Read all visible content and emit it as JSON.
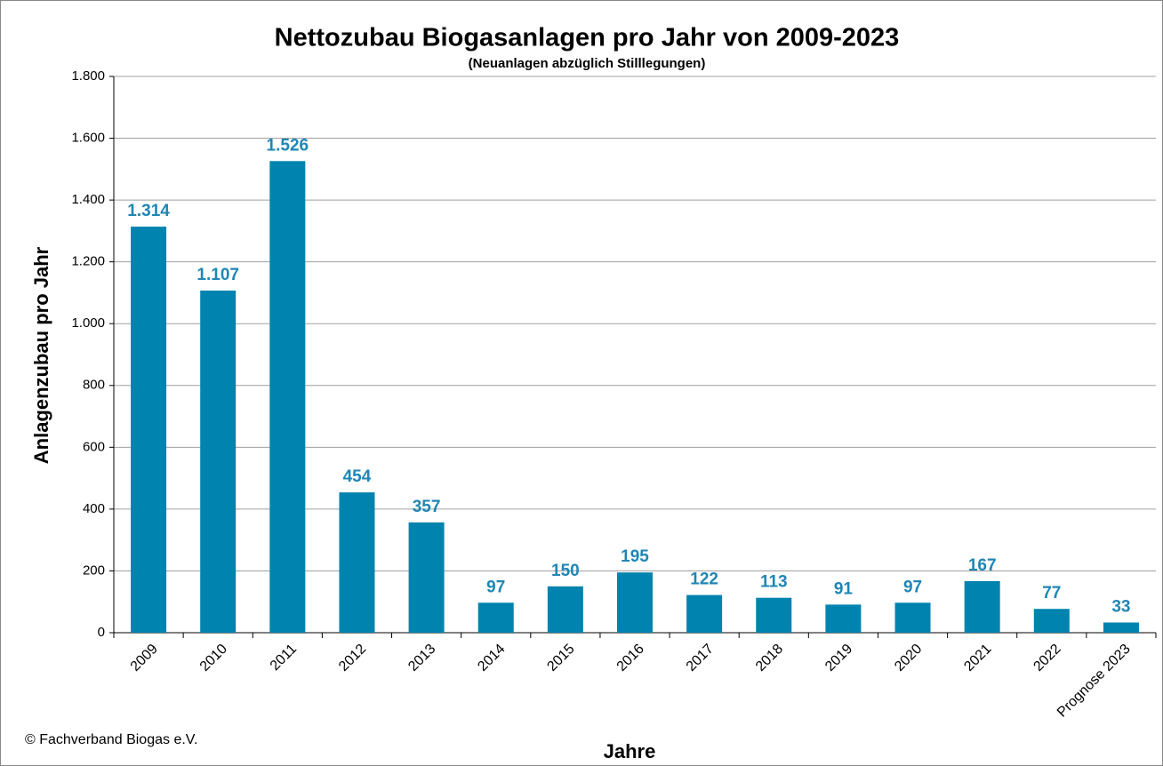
{
  "chart_data": {
    "type": "bar",
    "title": "Nettozubau Biogasanlagen pro Jahr von 2009-2023",
    "subtitle": "(Neuanlagen abzüglich Stilllegungen)",
    "x_label": "Jahre",
    "y_label": "Anlagenzubau pro Jahr",
    "source": "© Fachverband Biogas e.V.",
    "categories": [
      "2009",
      "2010",
      "2011",
      "2012",
      "2013",
      "2014",
      "2015",
      "2016",
      "2017",
      "2018",
      "2019",
      "2020",
      "2021",
      "2022",
      "Prognose 2023"
    ],
    "values": [
      1314,
      1107,
      1526,
      454,
      357,
      97,
      150,
      195,
      122,
      113,
      91,
      97,
      167,
      77,
      33
    ],
    "value_labels": [
      "1.314",
      "1.107",
      "1.526",
      "454",
      "357",
      "97",
      "150",
      "195",
      "122",
      "113",
      "91",
      "97",
      "167",
      "77",
      "33"
    ],
    "color": "#0083ae",
    "ylim": [
      0,
      1800
    ],
    "yticks": [
      0,
      200,
      400,
      600,
      800,
      {
        "value": 1000,
        "label": "1.000"
      },
      {
        "value": 1200,
        "label": "1.200"
      },
      {
        "value": 1400,
        "label": "1.400"
      },
      {
        "value": 1600,
        "label": "1.600"
      },
      {
        "value": 1800,
        "label": "1.800"
      }
    ],
    "grid": true
  }
}
